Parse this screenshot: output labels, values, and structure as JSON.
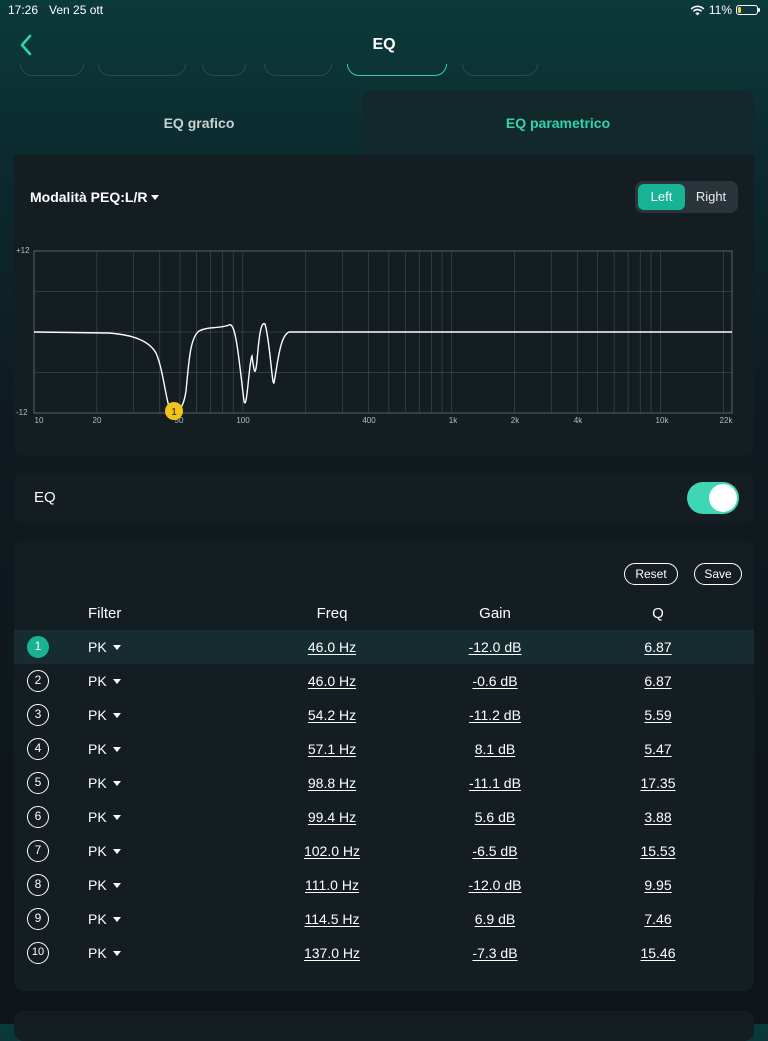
{
  "status": {
    "time": "17:26",
    "date": "Ven 25 ott",
    "battery": "11%",
    "battery_level": 0.11
  },
  "nav": {
    "title": "EQ"
  },
  "tabs": [
    {
      "label": "EQ grafico"
    },
    {
      "label": "EQ parametrico",
      "active": true
    }
  ],
  "peq": {
    "mode_label": "Modalità PEQ:L/R",
    "channels": [
      {
        "label": "Left",
        "selected": true
      },
      {
        "label": "Right"
      }
    ],
    "graph": {
      "y_labels": [
        "+12",
        "-12"
      ],
      "x_labels": [
        "10",
        "20",
        "50",
        "100",
        "400",
        "1k",
        "2k",
        "4k",
        "10k",
        "22k"
      ],
      "selected_marker": "1",
      "curve_color": "#ffffff",
      "marker_color": "#f2c31b"
    }
  },
  "eq": {
    "label": "EQ",
    "enabled": true
  },
  "filters": {
    "reset_label": "Reset",
    "save_label": "Save",
    "headers": {
      "filter": "Filter",
      "freq": "Freq",
      "gain": "Gain",
      "q": "Q"
    },
    "rows": [
      {
        "n": "1",
        "type": "PK",
        "freq": "46.0 Hz",
        "gain": "-12.0 dB",
        "q": "6.87",
        "selected": true
      },
      {
        "n": "2",
        "type": "PK",
        "freq": "46.0 Hz",
        "gain": "-0.6 dB",
        "q": "6.87"
      },
      {
        "n": "3",
        "type": "PK",
        "freq": "54.2 Hz",
        "gain": "-11.2 dB",
        "q": "5.59"
      },
      {
        "n": "4",
        "type": "PK",
        "freq": "57.1 Hz",
        "gain": "8.1 dB",
        "q": "5.47"
      },
      {
        "n": "5",
        "type": "PK",
        "freq": "98.8 Hz",
        "gain": "-11.1 dB",
        "q": "17.35"
      },
      {
        "n": "6",
        "type": "PK",
        "freq": "99.4 Hz",
        "gain": "5.6 dB",
        "q": "3.88"
      },
      {
        "n": "7",
        "type": "PK",
        "freq": "102.0 Hz",
        "gain": "-6.5 dB",
        "q": "15.53"
      },
      {
        "n": "8",
        "type": "PK",
        "freq": "111.0 Hz",
        "gain": "-12.0 dB",
        "q": "9.95"
      },
      {
        "n": "9",
        "type": "PK",
        "freq": "114.5 Hz",
        "gain": "6.9 dB",
        "q": "7.46"
      },
      {
        "n": "10",
        "type": "PK",
        "freq": "137.0 Hz",
        "gain": "-7.3 dB",
        "q": "15.46"
      }
    ]
  },
  "colors": {
    "accent": "#18b394",
    "accent_light": "#2fd3b0",
    "panel": "#141d22"
  }
}
